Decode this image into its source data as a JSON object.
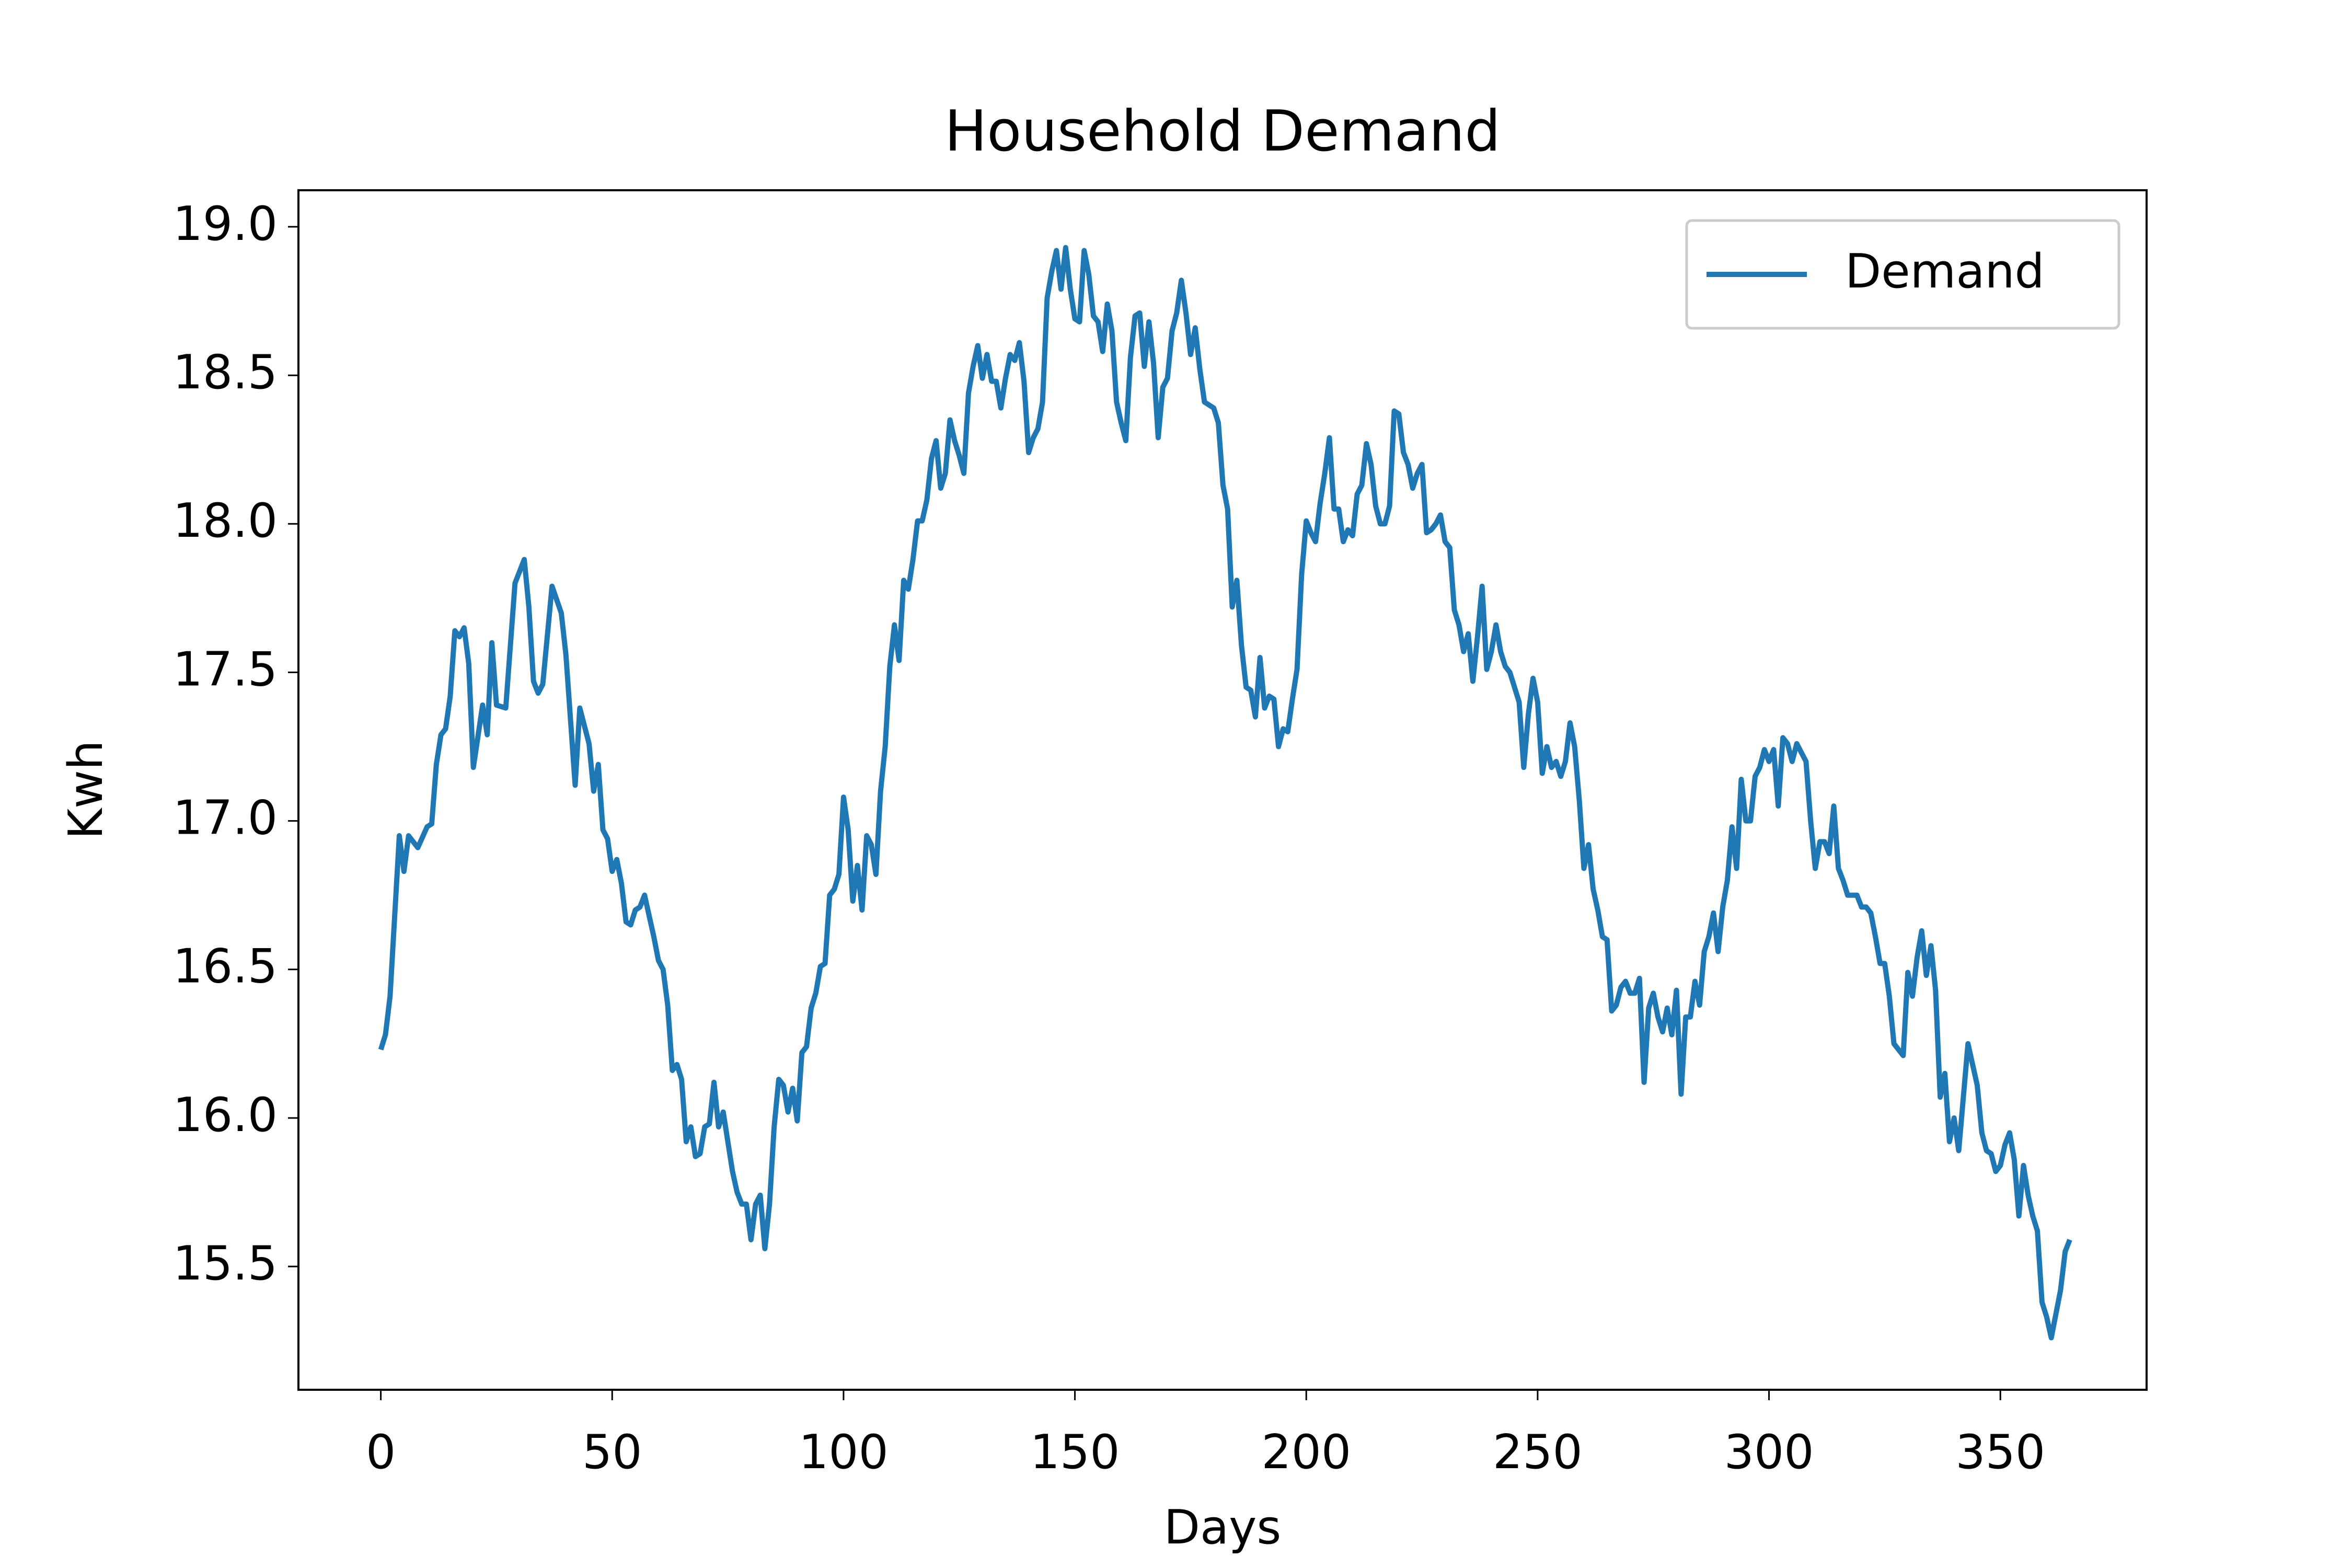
{
  "chart_data": {
    "type": "line",
    "title": "Household Demand",
    "x_label": "Days",
    "y_label": "Kwh",
    "x": [
      0,
      1,
      2,
      4,
      5,
      6,
      8,
      10,
      11,
      12,
      13,
      14,
      15,
      16,
      17,
      18,
      19,
      20,
      22,
      23,
      24,
      25,
      27,
      29,
      31,
      32,
      33,
      34,
      35,
      37,
      39,
      40,
      42,
      43,
      45,
      46,
      47,
      48,
      49,
      50,
      51,
      52,
      53,
      54,
      55,
      56,
      57,
      58,
      59,
      60,
      61,
      62,
      63,
      64,
      65,
      66,
      67,
      68,
      69,
      70,
      71,
      72,
      73,
      74,
      75,
      76,
      77,
      78,
      79,
      80,
      81,
      82,
      83,
      84,
      85,
      86,
      87,
      88,
      89,
      90,
      91,
      92,
      93,
      94,
      95,
      96,
      97,
      98,
      99,
      100,
      101,
      102,
      103,
      104,
      105,
      106,
      107,
      108,
      109,
      110,
      111,
      112,
      113,
      114,
      115,
      116,
      117,
      118,
      119,
      120,
      121,
      122,
      123,
      124,
      125,
      126,
      127,
      128,
      129,
      130,
      131,
      132,
      133,
      134,
      135,
      136,
      137,
      138,
      139,
      140,
      141,
      142,
      143,
      144,
      145,
      146,
      147,
      148,
      149,
      150,
      151,
      152,
      153,
      154,
      155,
      156,
      157,
      158,
      159,
      160,
      161,
      162,
      163,
      164,
      165,
      166,
      167,
      168,
      169,
      170,
      171,
      172,
      173,
      174,
      175,
      176,
      177,
      178,
      179,
      180,
      181,
      182,
      183,
      184,
      185,
      186,
      187,
      188,
      189,
      190,
      191,
      192,
      193,
      194,
      195,
      196,
      197,
      198,
      199,
      200,
      201,
      202,
      203,
      204,
      205,
      206,
      207,
      208,
      209,
      210,
      211,
      212,
      213,
      214,
      215,
      216,
      217,
      218,
      219,
      220,
      221,
      222,
      223,
      224,
      225,
      226,
      227,
      228,
      229,
      230,
      231,
      232,
      233,
      234,
      235,
      236,
      237,
      238,
      239,
      240,
      241,
      242,
      243,
      244,
      245,
      246,
      247,
      248,
      249,
      250,
      251,
      252,
      253,
      254,
      255,
      256,
      257,
      258,
      259,
      260,
      261,
      262,
      263,
      264,
      265,
      266,
      267,
      268,
      269,
      270,
      271,
      272,
      273,
      274,
      275,
      276,
      277,
      278,
      279,
      280,
      281,
      282,
      283,
      284,
      285,
      286,
      287,
      288,
      289,
      290,
      291,
      292,
      293,
      294,
      295,
      296,
      297,
      298,
      299,
      300,
      301,
      302,
      303,
      304,
      305,
      306,
      307,
      308,
      309,
      310,
      311,
      312,
      313,
      314,
      315,
      316,
      317,
      318,
      319,
      320,
      321,
      322,
      323,
      324,
      325,
      326,
      327,
      328,
      329,
      330,
      331,
      332,
      333,
      334,
      335,
      336,
      337,
      338,
      339,
      340,
      341,
      342,
      343,
      344,
      345,
      346,
      347,
      348,
      349,
      350,
      351,
      352,
      353,
      354,
      355,
      356,
      357,
      358,
      359,
      360,
      361,
      362,
      363,
      364,
      365
    ],
    "series": [
      {
        "name": "Demand",
        "color": "#1f77b4",
        "values": [
          16.23,
          16.28,
          16.41,
          16.95,
          16.83,
          16.95,
          16.91,
          16.98,
          16.99,
          17.19,
          17.29,
          17.31,
          17.42,
          17.64,
          17.62,
          17.65,
          17.53,
          17.18,
          17.39,
          17.29,
          17.6,
          17.39,
          17.38,
          17.8,
          17.88,
          17.72,
          17.47,
          17.43,
          17.46,
          17.79,
          17.7,
          17.56,
          17.12,
          17.38,
          17.26,
          17.1,
          17.19,
          16.97,
          16.94,
          16.83,
          16.87,
          16.79,
          16.66,
          16.65,
          16.7,
          16.71,
          16.75,
          16.68,
          16.61,
          16.53,
          16.5,
          16.38,
          16.16,
          16.18,
          16.13,
          15.92,
          15.97,
          15.87,
          15.88,
          15.97,
          15.98,
          16.12,
          15.97,
          16.02,
          15.92,
          15.82,
          15.75,
          15.71,
          15.71,
          15.59,
          15.71,
          15.74,
          15.56,
          15.71,
          15.97,
          16.13,
          16.11,
          16.02,
          16.1,
          15.99,
          16.22,
          16.24,
          16.37,
          16.42,
          16.51,
          16.52,
          16.75,
          16.77,
          16.82,
          17.08,
          16.97,
          16.73,
          16.85,
          16.7,
          16.95,
          16.92,
          16.82,
          17.1,
          17.25,
          17.52,
          17.66,
          17.54,
          17.81,
          17.78,
          17.88,
          18.01,
          18.01,
          18.08,
          18.22,
          18.28,
          18.12,
          18.17,
          18.35,
          18.28,
          18.23,
          18.17,
          18.44,
          18.53,
          18.6,
          18.49,
          18.57,
          18.48,
          18.48,
          18.39,
          18.49,
          18.57,
          18.55,
          18.61,
          18.48,
          18.24,
          18.29,
          18.32,
          18.41,
          18.76,
          18.85,
          18.92,
          18.79,
          18.93,
          18.79,
          18.69,
          18.68,
          18.92,
          18.84,
          18.7,
          18.68,
          18.58,
          18.74,
          18.65,
          18.41,
          18.34,
          18.28,
          18.56,
          18.7,
          18.71,
          18.53,
          18.68,
          18.54,
          18.29,
          18.46,
          18.49,
          18.65,
          18.71,
          18.82,
          18.71,
          18.57,
          18.66,
          18.52,
          18.41,
          18.4,
          18.39,
          18.34,
          18.13,
          18.05,
          17.72,
          17.81,
          17.59,
          17.45,
          17.44,
          17.35,
          17.55,
          17.38,
          17.42,
          17.41,
          17.25,
          17.31,
          17.3,
          17.41,
          17.51,
          17.83,
          18.01,
          17.97,
          17.94,
          18.07,
          18.17,
          18.29,
          18.05,
          18.05,
          17.94,
          17.98,
          17.96,
          18.1,
          18.13,
          18.27,
          18.2,
          18.06,
          18.0,
          18.0,
          18.06,
          18.38,
          18.37,
          18.24,
          18.2,
          18.12,
          18.17,
          18.2,
          17.97,
          17.98,
          18.0,
          18.03,
          17.94,
          17.92,
          17.71,
          17.66,
          17.57,
          17.63,
          17.47,
          17.62,
          17.79,
          17.51,
          17.57,
          17.66,
          17.57,
          17.52,
          17.5,
          17.45,
          17.4,
          17.18,
          17.36,
          17.48,
          17.4,
          17.16,
          17.25,
          17.18,
          17.2,
          17.15,
          17.2,
          17.33,
          17.25,
          17.07,
          16.84,
          16.92,
          16.77,
          16.7,
          16.61,
          16.6,
          16.36,
          16.38,
          16.44,
          16.46,
          16.42,
          16.42,
          16.47,
          16.12,
          16.37,
          16.42,
          16.34,
          16.29,
          16.37,
          16.28,
          16.43,
          16.08,
          16.34,
          16.34,
          16.46,
          16.38,
          16.56,
          16.61,
          16.69,
          16.56,
          16.71,
          16.8,
          16.98,
          16.84,
          17.14,
          17.0,
          17.0,
          17.15,
          17.18,
          17.24,
          17.2,
          17.24,
          17.05,
          17.28,
          17.26,
          17.2,
          17.26,
          17.23,
          17.2,
          17.0,
          16.84,
          16.93,
          16.93,
          16.89,
          17.05,
          16.84,
          16.8,
          16.75,
          16.75,
          16.75,
          16.71,
          16.71,
          16.69,
          16.61,
          16.52,
          16.52,
          16.41,
          16.25,
          16.23,
          16.21,
          16.49,
          16.41,
          16.54,
          16.63,
          16.48,
          16.58,
          16.43,
          16.07,
          16.15,
          15.92,
          16.0,
          15.89,
          16.07,
          16.25,
          16.18,
          16.11,
          15.95,
          15.89,
          15.88,
          15.82,
          15.84,
          15.91,
          15.95,
          15.86,
          15.67,
          15.84,
          15.74,
          15.67,
          15.62,
          15.38,
          15.33,
          15.26,
          15.34,
          15.42,
          15.55,
          15.59
        ]
      }
    ],
    "xlim": [
      -17.8,
      381.6
    ],
    "ylim": [
      15.085,
      19.123
    ],
    "xticks": [
      0,
      50,
      100,
      150,
      200,
      250,
      300,
      350
    ],
    "yticks": [
      15.5,
      {
        "value": 16,
        "label": "16.0"
      },
      16.5,
      {
        "value": 17,
        "label": "17.0"
      },
      17.5,
      {
        "value": 18,
        "label": "18.0"
      },
      18.5,
      {
        "value": 19,
        "label": "19.0"
      }
    ],
    "grid": false,
    "legend": "upper right"
  }
}
